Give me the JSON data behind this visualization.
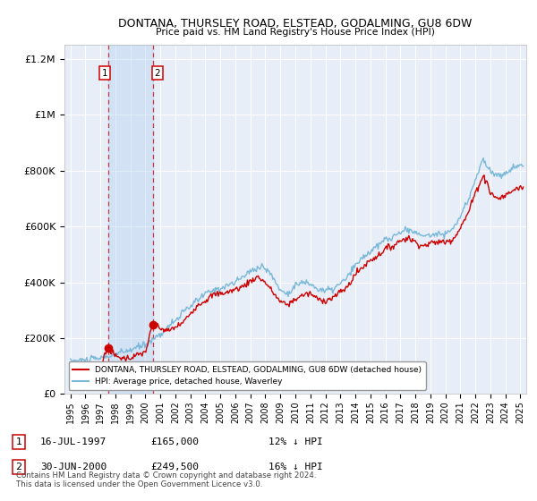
{
  "title": "DONTANA, THURSLEY ROAD, ELSTEAD, GODALMING, GU8 6DW",
  "subtitle": "Price paid vs. HM Land Registry's House Price Index (HPI)",
  "legend_entry1": "DONTANA, THURSLEY ROAD, ELSTEAD, GODALMING, GU8 6DW (detached house)",
  "legend_entry2": "HPI: Average price, detached house, Waverley",
  "footnote": "Contains HM Land Registry data © Crown copyright and database right 2024.\nThis data is licensed under the Open Government Licence v3.0.",
  "sale1_date": "16-JUL-1997",
  "sale1_price": 165000,
  "sale1_pct": "12% ↓ HPI",
  "sale1_label": "1",
  "sale1_year": 1997.54,
  "sale2_date": "30-JUN-2000",
  "sale2_price": 249500,
  "sale2_pct": "16% ↓ HPI",
  "sale2_label": "2",
  "sale2_year": 2000.49,
  "hpi_color": "#7ab8d9",
  "price_color": "#cc0000",
  "dashed_color": "#cc0000",
  "background_plot": "#e8eef8",
  "background_fig": "#ffffff",
  "ylim": [
    0,
    1250000
  ],
  "xlim_start": 1994.6,
  "xlim_end": 2025.4,
  "hpi_anchors": [
    [
      1995.0,
      118000
    ],
    [
      1996.0,
      122000
    ],
    [
      1997.0,
      128000
    ],
    [
      1997.5,
      135000
    ],
    [
      1998.0,
      142000
    ],
    [
      1999.0,
      158000
    ],
    [
      2000.0,
      178000
    ],
    [
      2001.0,
      215000
    ],
    [
      2002.0,
      265000
    ],
    [
      2003.0,
      315000
    ],
    [
      2004.0,
      360000
    ],
    [
      2005.0,
      380000
    ],
    [
      2006.0,
      400000
    ],
    [
      2007.0,
      440000
    ],
    [
      2007.8,
      460000
    ],
    [
      2008.5,
      420000
    ],
    [
      2009.0,
      370000
    ],
    [
      2009.5,
      360000
    ],
    [
      2010.0,
      390000
    ],
    [
      2010.5,
      400000
    ],
    [
      2011.0,
      395000
    ],
    [
      2011.5,
      375000
    ],
    [
      2012.0,
      370000
    ],
    [
      2012.5,
      375000
    ],
    [
      2013.0,
      395000
    ],
    [
      2013.5,
      420000
    ],
    [
      2014.0,
      460000
    ],
    [
      2014.5,
      490000
    ],
    [
      2015.0,
      510000
    ],
    [
      2015.5,
      530000
    ],
    [
      2016.0,
      555000
    ],
    [
      2016.5,
      560000
    ],
    [
      2017.0,
      580000
    ],
    [
      2017.5,
      590000
    ],
    [
      2018.0,
      580000
    ],
    [
      2018.5,
      565000
    ],
    [
      2019.0,
      570000
    ],
    [
      2019.5,
      575000
    ],
    [
      2020.0,
      575000
    ],
    [
      2020.5,
      590000
    ],
    [
      2021.0,
      635000
    ],
    [
      2021.5,
      690000
    ],
    [
      2022.0,
      770000
    ],
    [
      2022.5,
      840000
    ],
    [
      2023.0,
      800000
    ],
    [
      2023.5,
      780000
    ],
    [
      2024.0,
      790000
    ],
    [
      2024.5,
      810000
    ],
    [
      2025.0,
      820000
    ]
  ],
  "price_anchors": [
    [
      1995.0,
      95000
    ],
    [
      1996.0,
      100000
    ],
    [
      1997.0,
      105000
    ],
    [
      1997.54,
      165000
    ],
    [
      1998.0,
      135000
    ],
    [
      1998.5,
      128000
    ],
    [
      1999.0,
      130000
    ],
    [
      1999.5,
      140000
    ],
    [
      2000.0,
      150000
    ],
    [
      2000.49,
      249500
    ],
    [
      2001.0,
      235000
    ],
    [
      2001.5,
      225000
    ],
    [
      2002.0,
      240000
    ],
    [
      2002.5,
      255000
    ],
    [
      2003.0,
      290000
    ],
    [
      2003.5,
      320000
    ],
    [
      2004.0,
      335000
    ],
    [
      2004.5,
      355000
    ],
    [
      2005.0,
      360000
    ],
    [
      2005.5,
      365000
    ],
    [
      2006.0,
      375000
    ],
    [
      2006.5,
      385000
    ],
    [
      2007.0,
      405000
    ],
    [
      2007.5,
      420000
    ],
    [
      2008.0,
      400000
    ],
    [
      2008.5,
      365000
    ],
    [
      2009.0,
      330000
    ],
    [
      2009.5,
      320000
    ],
    [
      2010.0,
      340000
    ],
    [
      2010.5,
      355000
    ],
    [
      2011.0,
      360000
    ],
    [
      2011.5,
      340000
    ],
    [
      2012.0,
      335000
    ],
    [
      2012.5,
      345000
    ],
    [
      2013.0,
      365000
    ],
    [
      2013.5,
      385000
    ],
    [
      2014.0,
      430000
    ],
    [
      2014.5,
      455000
    ],
    [
      2015.0,
      480000
    ],
    [
      2015.5,
      495000
    ],
    [
      2016.0,
      520000
    ],
    [
      2016.5,
      530000
    ],
    [
      2017.0,
      550000
    ],
    [
      2017.5,
      560000
    ],
    [
      2018.0,
      545000
    ],
    [
      2018.5,
      530000
    ],
    [
      2019.0,
      540000
    ],
    [
      2019.5,
      545000
    ],
    [
      2020.0,
      545000
    ],
    [
      2020.5,
      555000
    ],
    [
      2021.0,
      595000
    ],
    [
      2021.5,
      645000
    ],
    [
      2022.0,
      720000
    ],
    [
      2022.5,
      780000
    ],
    [
      2022.8,
      760000
    ],
    [
      2023.0,
      720000
    ],
    [
      2023.5,
      700000
    ],
    [
      2024.0,
      710000
    ],
    [
      2024.5,
      730000
    ],
    [
      2025.0,
      740000
    ]
  ]
}
